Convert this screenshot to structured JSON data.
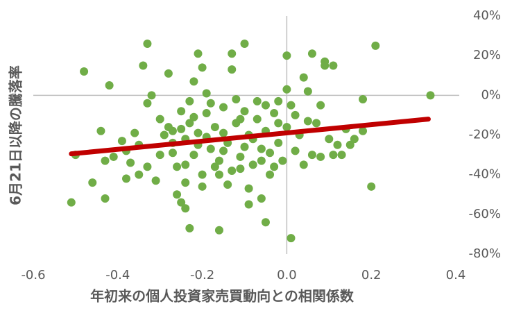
{
  "chart_data": {
    "type": "scatter",
    "xlabel": "年初来の個人投資家売買動向との相関係数",
    "ylabel": "6月21日以降の騰落率",
    "color": "#70ad47",
    "x": [
      -0.51,
      -0.5,
      -0.48,
      -0.46,
      -0.44,
      -0.42,
      -0.43,
      -0.43,
      -0.41,
      -0.39,
      -0.38,
      -0.37,
      -0.36,
      -0.35,
      -0.34,
      -0.33,
      -0.33,
      -0.32,
      -0.31,
      -0.3,
      -0.29,
      -0.28,
      -0.27,
      -0.26,
      -0.25,
      -0.24,
      -0.23,
      -0.22,
      -0.21,
      -0.2,
      -0.25,
      -0.24,
      -0.23,
      -0.22,
      -0.16,
      -0.15,
      -0.21,
      -0.2,
      -0.19,
      -0.11,
      -0.1,
      -0.09,
      -0.16,
      -0.13,
      -0.13,
      -0.05,
      -0.1,
      -0.03,
      -0.02,
      -0.09,
      0.0,
      0.01,
      0.02,
      -0.05,
      -0.06,
      0.01,
      0.0,
      0.07,
      0.06,
      0.08,
      0.09,
      0.1,
      0.04,
      0.05,
      0.13,
      0.14,
      0.09,
      0.11,
      0.15,
      0.18,
      0.16,
      0.2,
      0.21,
      0.34,
      0.18,
      -0.3,
      -0.28,
      -0.27,
      -0.26,
      -0.25,
      -0.24,
      -0.23,
      -0.22,
      -0.21,
      -0.2,
      -0.19,
      -0.18,
      -0.17,
      -0.16,
      -0.15,
      -0.14,
      -0.13,
      -0.12,
      -0.11,
      -0.1,
      -0.09,
      -0.08,
      -0.07,
      -0.06,
      -0.05,
      -0.04,
      -0.03,
      -0.02,
      -0.01,
      0.0,
      0.02,
      0.03,
      0.04,
      0.05,
      0.06,
      -0.18,
      -0.14,
      -0.12,
      -0.08,
      -0.17,
      -0.24,
      -0.33,
      -0.35,
      -0.19,
      -0.11,
      -0.07,
      -0.04,
      0.08,
      0.11,
      0.12,
      -0.27,
      -0.15,
      -0.06,
      -0.02,
      -0.38
    ],
    "y": [
      -54,
      -30,
      12,
      -44,
      -18,
      5,
      -33,
      -52,
      -31,
      -23,
      -28,
      -34,
      -19,
      -40,
      15,
      26,
      -4,
      0,
      -43,
      -30,
      -20,
      11,
      -24,
      -50,
      -17,
      -35,
      -3,
      -11,
      -25,
      -46,
      -54,
      -57,
      -67,
      7,
      -40,
      -19,
      21,
      14,
      1,
      -12,
      -26,
      -47,
      -68,
      21,
      13,
      -5,
      26,
      -36,
      -14,
      -55,
      3,
      -5,
      -10,
      -64,
      -52,
      -72,
      20,
      -14,
      21,
      -5,
      17,
      -22,
      9,
      2,
      -30,
      -17,
      15,
      15,
      -25,
      -18,
      -22,
      -46,
      25,
      0,
      -2,
      -12,
      -16,
      -29,
      -36,
      -8,
      -22,
      -14,
      -30,
      -19,
      -40,
      -9,
      -27,
      -16,
      -33,
      -6,
      -24,
      -38,
      -14,
      -31,
      -8,
      -20,
      -35,
      -12,
      -27,
      -18,
      -40,
      -9,
      -24,
      -33,
      -16,
      -28,
      -20,
      -35,
      -13,
      -30,
      -4,
      -45,
      -2,
      -22,
      -36,
      -44,
      -36,
      -25,
      -21,
      -37,
      -3,
      -29,
      -31,
      -30,
      -25,
      -18,
      -28,
      -33,
      -3,
      -42
    ],
    "trendline": {
      "x": [
        -0.51,
        0.335
      ],
      "y": [
        -29.5,
        -12
      ],
      "color": "#c00000"
    },
    "xlim": [
      -0.6,
      0.4
    ],
    "ylim": [
      -80,
      40
    ],
    "xticks": [
      -0.6,
      -0.4,
      -0.2,
      {
        "value": 0,
        "label": "0.0"
      },
      0.2,
      0.4
    ],
    "yticks": [
      {
        "value": 40,
        "label": "40%"
      },
      {
        "value": 20,
        "label": "20%"
      },
      {
        "value": 0,
        "label": "0%"
      },
      {
        "value": -20,
        "label": "-20%"
      },
      {
        "value": -40,
        "label": "-40%"
      },
      {
        "value": -60,
        "label": "-60%"
      },
      {
        "value": -80,
        "label": "-80%"
      }
    ]
  }
}
